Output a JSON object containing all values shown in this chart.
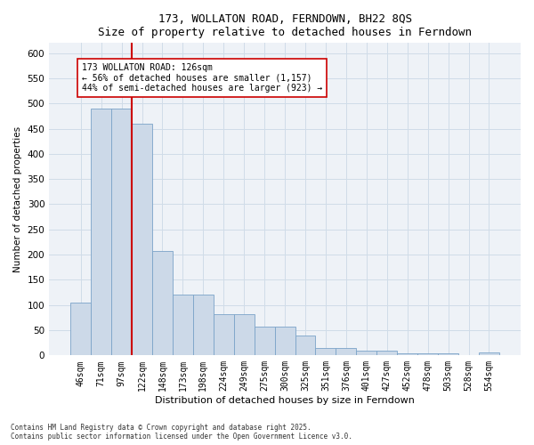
{
  "title1": "173, WOLLATON ROAD, FERNDOWN, BH22 8QS",
  "title2": "Size of property relative to detached houses in Ferndown",
  "xlabel": "Distribution of detached houses by size in Ferndown",
  "ylabel": "Number of detached properties",
  "categories": [
    "46sqm",
    "71sqm",
    "97sqm",
    "122sqm",
    "148sqm",
    "173sqm",
    "198sqm",
    "224sqm",
    "249sqm",
    "275sqm",
    "300sqm",
    "325sqm",
    "351sqm",
    "376sqm",
    "401sqm",
    "427sqm",
    "452sqm",
    "478sqm",
    "503sqm",
    "528sqm",
    "554sqm"
  ],
  "bar_values": [
    105,
    490,
    490,
    460,
    207,
    121,
    121,
    82,
    82,
    57,
    57,
    40,
    14,
    14,
    10,
    10,
    5,
    5,
    5,
    0,
    6
  ],
  "bar_color": "#ccd9e8",
  "bar_edge_color": "#7ba3c8",
  "vertical_line_index": 3,
  "vertical_line_color": "#cc0000",
  "ylim": [
    0,
    620
  ],
  "yticks": [
    0,
    50,
    100,
    150,
    200,
    250,
    300,
    350,
    400,
    450,
    500,
    550,
    600
  ],
  "annotation_line1": "173 WOLLATON ROAD: 126sqm",
  "annotation_line2": "← 56% of detached houses are smaller (1,157)",
  "annotation_line3": "44% of semi-detached houses are larger (923) →",
  "footnote1": "Contains HM Land Registry data © Crown copyright and database right 2025.",
  "footnote2": "Contains public sector information licensed under the Open Government Licence v3.0.",
  "grid_color": "#d0dce8",
  "background_color": "#eef2f7"
}
